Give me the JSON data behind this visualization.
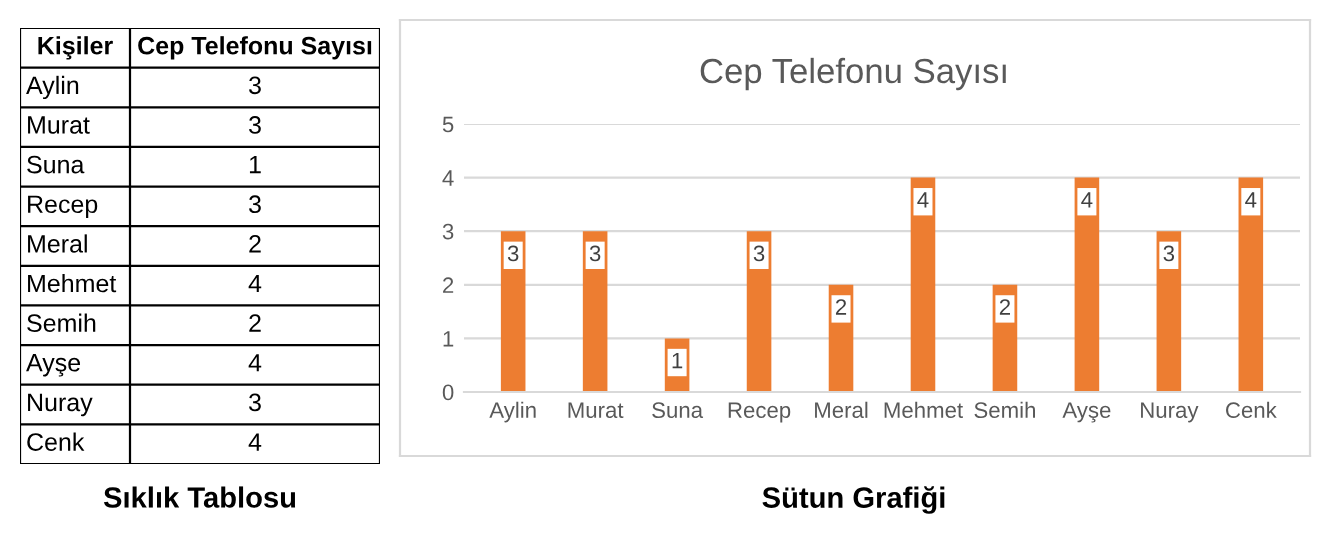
{
  "chart_data": [
    {
      "type": "other",
      "xlabel": "Kişiler",
      "ylabel": "Cep Telefonu Sayısı",
      "categories": [
        "Aylin",
        "Murat",
        "Suna",
        "Recep",
        "Meral",
        "Mehmet",
        "Semih",
        "Ayşe",
        "Nuray",
        "Cenk"
      ],
      "values": [
        3,
        3,
        1,
        3,
        2,
        4,
        2,
        4,
        3,
        4
      ],
      "data_labels": true,
      "annotations": [
        "Sıklık Tablosu"
      ]
    },
    {
      "type": "bar",
      "title": "Cep Telefonu Sayısı",
      "categories": [
        "Aylin",
        "Murat",
        "Suna",
        "Recep",
        "Meral",
        "Mehmet",
        "Semih",
        "Ayşe",
        "Nuray",
        "Cenk"
      ],
      "values": [
        3,
        3,
        1,
        3,
        2,
        4,
        2,
        4,
        3,
        4
      ],
      "color": "#ed7d31",
      "ylim": [
        0,
        5
      ],
      "yticks": [
        0,
        1,
        2,
        3,
        4,
        5
      ],
      "grid": "y",
      "data_labels": true,
      "annotations": [
        "Sütun Grafiği"
      ]
    }
  ]
}
